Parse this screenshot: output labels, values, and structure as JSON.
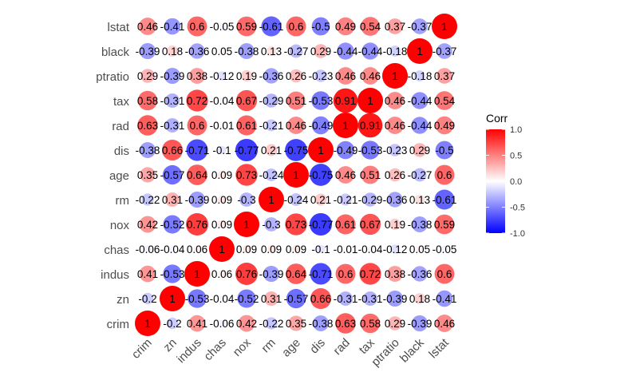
{
  "chart_data": {
    "type": "heatmap",
    "variables": [
      "crim",
      "zn",
      "indus",
      "chas",
      "nox",
      "rm",
      "age",
      "dis",
      "rad",
      "tax",
      "ptratio",
      "black",
      "lstat"
    ],
    "matrix": [
      [
        1,
        -0.2,
        0.41,
        -0.06,
        0.42,
        -0.22,
        0.35,
        -0.38,
        0.63,
        0.58,
        0.29,
        -0.39,
        0.46
      ],
      [
        -0.2,
        1,
        -0.53,
        -0.04,
        -0.52,
        0.31,
        -0.57,
        0.66,
        -0.31,
        -0.31,
        -0.39,
        0.18,
        -0.41
      ],
      [
        0.41,
        -0.53,
        1,
        0.06,
        0.76,
        -0.39,
        0.64,
        -0.71,
        0.6,
        0.72,
        0.38,
        -0.36,
        0.6
      ],
      [
        -0.06,
        -0.04,
        0.06,
        1,
        0.09,
        0.09,
        0.09,
        -0.1,
        -0.01,
        -0.04,
        -0.12,
        0.05,
        -0.05
      ],
      [
        0.42,
        -0.52,
        0.76,
        0.09,
        1,
        -0.3,
        0.73,
        -0.77,
        0.61,
        0.67,
        0.19,
        -0.38,
        0.59
      ],
      [
        -0.22,
        0.31,
        -0.39,
        0.09,
        -0.3,
        1,
        -0.24,
        0.21,
        -0.21,
        -0.29,
        -0.36,
        0.13,
        -0.61
      ],
      [
        0.35,
        -0.57,
        0.64,
        0.09,
        0.73,
        -0.24,
        1,
        -0.75,
        0.46,
        0.51,
        0.26,
        -0.27,
        0.6
      ],
      [
        -0.38,
        0.66,
        -0.71,
        -0.1,
        -0.77,
        0.21,
        -0.75,
        1,
        -0.49,
        -0.53,
        -0.23,
        0.29,
        -0.5
      ],
      [
        0.63,
        -0.31,
        0.6,
        -0.01,
        0.61,
        -0.21,
        0.46,
        -0.49,
        1,
        0.91,
        0.46,
        -0.44,
        0.49
      ],
      [
        0.58,
        -0.31,
        0.72,
        -0.04,
        0.67,
        -0.29,
        0.51,
        -0.53,
        0.91,
        1,
        0.46,
        -0.44,
        0.54
      ],
      [
        0.29,
        -0.39,
        0.38,
        -0.12,
        0.19,
        -0.36,
        0.26,
        -0.23,
        0.46,
        0.46,
        1,
        -0.18,
        0.37
      ],
      [
        -0.39,
        0.18,
        -0.36,
        0.05,
        -0.38,
        0.13,
        -0.27,
        0.29,
        -0.44,
        -0.44,
        -0.18,
        1,
        -0.37
      ],
      [
        0.46,
        -0.41,
        0.6,
        -0.05,
        0.59,
        -0.61,
        0.6,
        -0.5,
        0.49,
        0.54,
        0.37,
        -0.37,
        1
      ]
    ],
    "legend": {
      "title": "Corr",
      "range": [
        -1,
        1
      ],
      "ticks": [
        "1.0",
        "0.5",
        "0.0",
        "-0.5",
        "-1.0"
      ],
      "colors": {
        "low": "#0000FF",
        "mid": "#FFFFFF",
        "high": "#FF0000"
      },
      "position": "right"
    },
    "marker": "circle",
    "size_by": "absolute value",
    "grid": false
  }
}
